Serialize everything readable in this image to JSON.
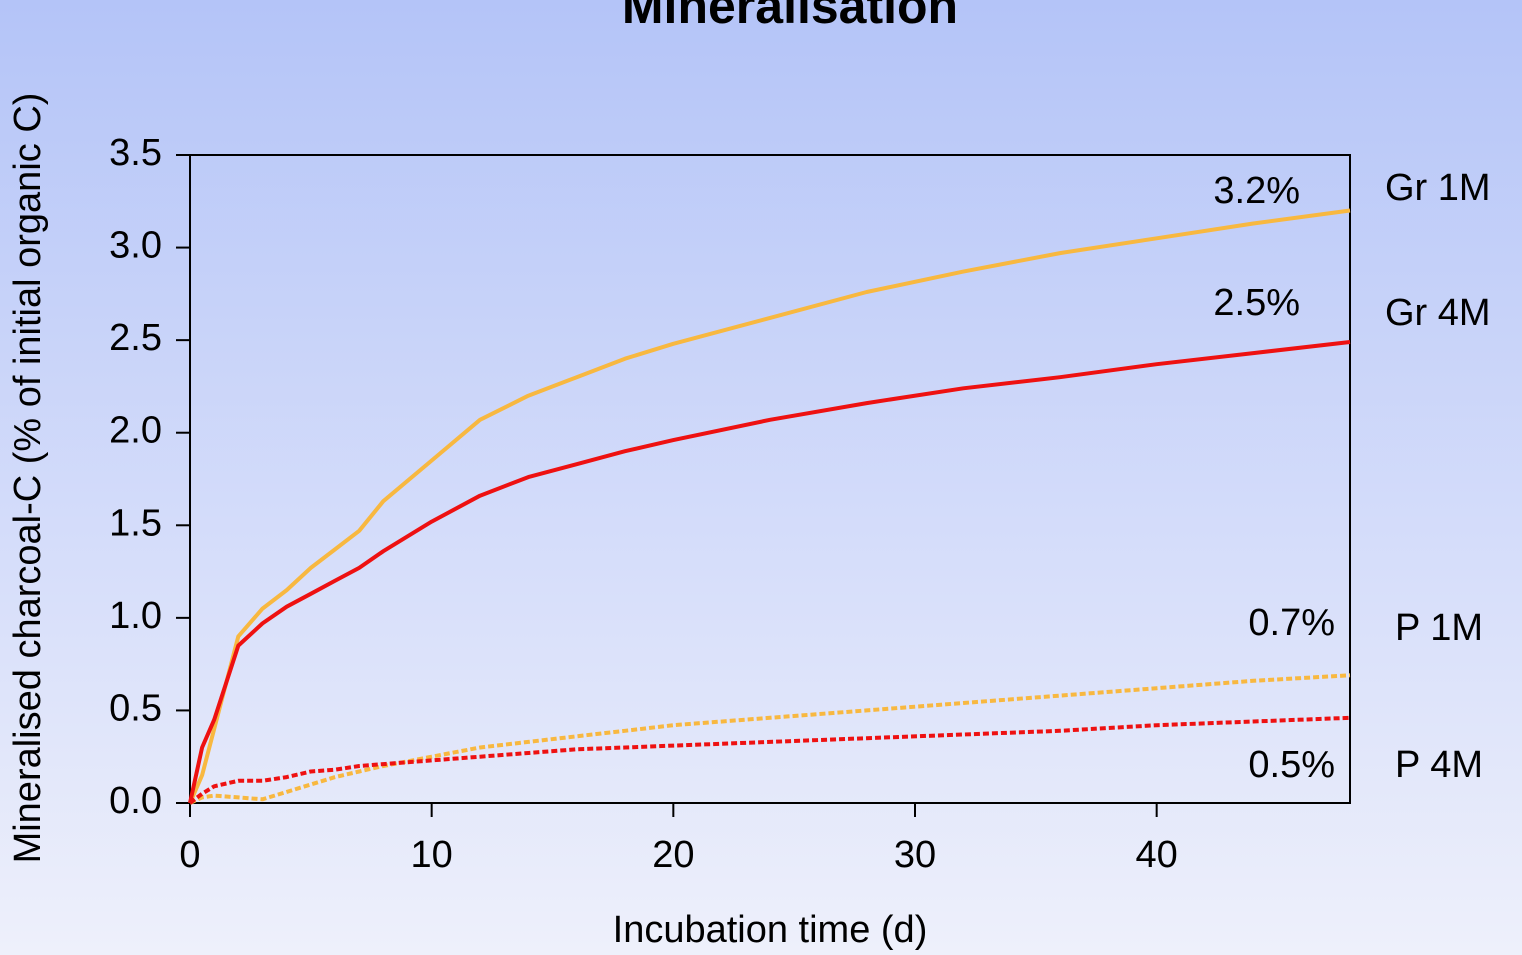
{
  "chart_data": {
    "type": "line",
    "title": "Mineralisation",
    "x_label": "Incubation time (d)",
    "y_label": "Mineralised charcoal-C (% of initial organic C)",
    "x": [
      0,
      0.5,
      1,
      2,
      3,
      4,
      5,
      6,
      7,
      8,
      10,
      12,
      14,
      16,
      18,
      20,
      24,
      28,
      32,
      36,
      40,
      44,
      48
    ],
    "series": [
      {
        "name": "Gr 1M",
        "color": "#f8b840",
        "dashed": false,
        "end_label": "3.2%",
        "values": [
          0,
          0.15,
          0.4,
          0.9,
          1.05,
          1.15,
          1.27,
          1.37,
          1.47,
          1.63,
          1.85,
          2.07,
          2.2,
          2.3,
          2.4,
          2.48,
          2.62,
          2.76,
          2.87,
          2.97,
          3.05,
          3.13,
          3.2
        ]
      },
      {
        "name": "Gr 4M",
        "color": "#ee1111",
        "dashed": false,
        "end_label": "2.5%",
        "values": [
          0,
          0.3,
          0.45,
          0.85,
          0.97,
          1.06,
          1.13,
          1.2,
          1.27,
          1.36,
          1.52,
          1.66,
          1.76,
          1.83,
          1.9,
          1.96,
          2.07,
          2.16,
          2.24,
          2.3,
          2.37,
          2.43,
          2.49
        ]
      },
      {
        "name": "P 1M",
        "color": "#f8b840",
        "dashed": true,
        "end_label": "0.7%",
        "values": [
          0,
          0.03,
          0.04,
          0.03,
          0.02,
          0.06,
          0.1,
          0.14,
          0.17,
          0.2,
          0.25,
          0.3,
          0.33,
          0.36,
          0.39,
          0.42,
          0.46,
          0.5,
          0.54,
          0.58,
          0.62,
          0.66,
          0.69
        ]
      },
      {
        "name": "P 4M",
        "color": "#ee1111",
        "dashed": true,
        "end_label": "0.5%",
        "values": [
          0,
          0.05,
          0.09,
          0.12,
          0.12,
          0.14,
          0.17,
          0.18,
          0.2,
          0.21,
          0.23,
          0.25,
          0.27,
          0.29,
          0.3,
          0.31,
          0.33,
          0.35,
          0.37,
          0.39,
          0.42,
          0.44,
          0.46
        ]
      }
    ],
    "xlim": [
      0,
      48
    ],
    "xticks": [
      0,
      10,
      20,
      30,
      40
    ],
    "ylim": [
      0,
      3.5
    ],
    "yticks": [
      {
        "value": 0,
        "label": "0.0"
      },
      0.5,
      {
        "value": 1,
        "label": "1.0"
      },
      1.5,
      {
        "value": 2,
        "label": "2.0"
      },
      2.5,
      {
        "value": 3,
        "label": "3.0"
      },
      3.5
    ],
    "grid": false
  }
}
